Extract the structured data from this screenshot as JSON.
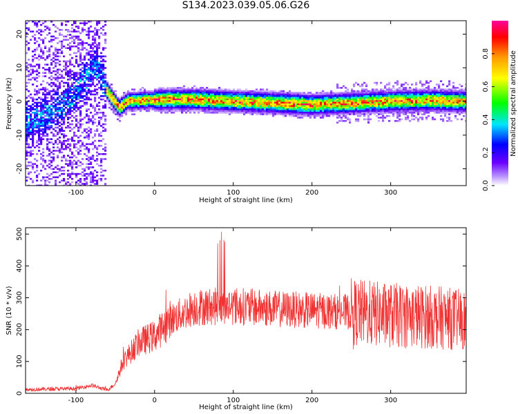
{
  "title": "S134.2023.039.05.06.G26",
  "chart_data": [
    {
      "type": "heatmap",
      "xlabel": "Height of straight line (km)",
      "ylabel": "Frequency (Hz)",
      "xlim": [
        -164,
        396
      ],
      "ylim": [
        -25,
        24
      ],
      "x_ticks": [
        -100,
        0,
        100,
        200,
        300
      ],
      "y_ticks": [
        -20,
        -10,
        0,
        10,
        20
      ],
      "colorbar": {
        "label": "Normalized spectral amplitude",
        "range": [
          0,
          1
        ],
        "ticks": [
          0.0,
          0.2,
          0.4,
          0.6,
          0.8
        ],
        "colors": [
          "#ffffff",
          "#7b00ff",
          "#0000ff",
          "#00e5ff",
          "#00ff00",
          "#ffff00",
          "#ff9900",
          "#ff0000",
          "#ff0099"
        ]
      },
      "ridge": [
        {
          "x": -160,
          "y": -6
        },
        {
          "x": -140,
          "y": -4
        },
        {
          "x": -120,
          "y": -2
        },
        {
          "x": -100,
          "y": 3
        },
        {
          "x": -85,
          "y": 7
        },
        {
          "x": -75,
          "y": 11
        },
        {
          "x": -60,
          "y": 3
        },
        {
          "x": -45,
          "y": -2
        },
        {
          "x": -35,
          "y": 0
        },
        {
          "x": 0,
          "y": 0.5
        },
        {
          "x": 50,
          "y": 0.6
        },
        {
          "x": 100,
          "y": 0
        },
        {
          "x": 150,
          "y": -0.4
        },
        {
          "x": 200,
          "y": -1
        },
        {
          "x": 250,
          "y": -0.5
        },
        {
          "x": 300,
          "y": 0
        },
        {
          "x": 350,
          "y": 0.3
        },
        {
          "x": 396,
          "y": 0
        }
      ]
    },
    {
      "type": "line",
      "xlabel": "Height of straight line (km)",
      "ylabel": "SNR (10 * v/v)",
      "xlim": [
        -164,
        396
      ],
      "ylim": [
        0,
        520
      ],
      "x_ticks": [
        -100,
        0,
        100,
        200,
        300
      ],
      "y_ticks": [
        0,
        100,
        200,
        300,
        400,
        500
      ],
      "color": "#f03232",
      "envelope": [
        {
          "x": -164,
          "y": 12
        },
        {
          "x": -100,
          "y": 15
        },
        {
          "x": -80,
          "y": 25
        },
        {
          "x": -60,
          "y": 10
        },
        {
          "x": -50,
          "y": 30
        },
        {
          "x": -40,
          "y": 100
        },
        {
          "x": -20,
          "y": 160
        },
        {
          "x": 0,
          "y": 180
        },
        {
          "x": 20,
          "y": 230
        },
        {
          "x": 50,
          "y": 270
        },
        {
          "x": 100,
          "y": 275
        },
        {
          "x": 150,
          "y": 265
        },
        {
          "x": 200,
          "y": 260
        },
        {
          "x": 250,
          "y": 255
        },
        {
          "x": 300,
          "y": 245
        },
        {
          "x": 350,
          "y": 240
        },
        {
          "x": 396,
          "y": 230
        }
      ]
    }
  ]
}
